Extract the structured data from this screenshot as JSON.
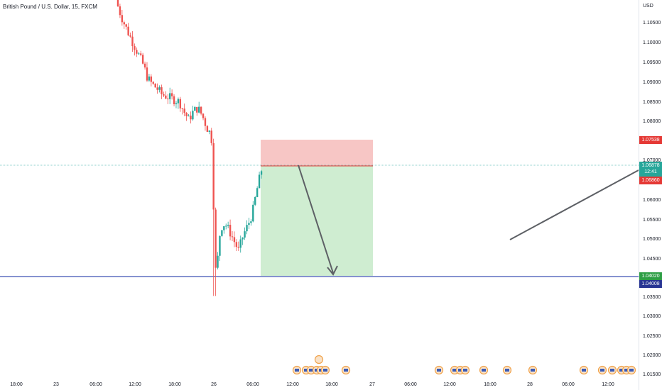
{
  "header": {
    "title": "British Pound / U.S. Dollar, 15, FXCM"
  },
  "price_axis": {
    "currency": "USD",
    "ticks": [
      "1.10500",
      "1.10000",
      "1.09500",
      "1.09000",
      "1.08500",
      "1.08000",
      "1.07000",
      "1.06000",
      "1.05500",
      "1.05000",
      "1.04500",
      "1.03500",
      "1.03000",
      "1.02500",
      "1.02000",
      "1.01500"
    ],
    "tags": {
      "stop": "1.07538",
      "current": "1.06878",
      "countdown": "12:41",
      "entry": "1.06860",
      "target": "1.04020",
      "horizontal_line": "1.04008"
    }
  },
  "time_axis": {
    "labels": [
      "18:00",
      "23",
      "06:00",
      "12:00",
      "18:00",
      "26",
      "06:00",
      "12:00",
      "18:00",
      "27",
      "06:00",
      "12:00",
      "18:00",
      "28",
      "06:00",
      "12:00"
    ]
  },
  "chart_data": {
    "type": "candlestick",
    "symbol": "GBPUSD",
    "timeframe": "15",
    "source": "FXCM",
    "ylim": [
      1.0125,
      1.112
    ],
    "close_path_approx": [
      1.112,
      1.1085,
      1.1055,
      1.103,
      1.1005,
      1.098,
      1.0955,
      1.092,
      1.0905,
      1.0895,
      1.088,
      1.0875,
      1.087,
      1.0865,
      1.086,
      1.0835,
      1.0815,
      1.0835,
      1.0845,
      1.0825,
      1.0795,
      1.0775,
      1.041,
      1.054,
      1.055,
      1.053,
      1.0505,
      1.048,
      1.052,
      1.0545,
      1.0575,
      1.0635,
      1.0686
    ],
    "short_position": {
      "entry": 1.0686,
      "stop": 1.07538,
      "target": 1.0402
    },
    "horizontal_line": 1.04008,
    "colors": {
      "up": "#26a69a",
      "down": "#ef5350",
      "stop_zone": "#f7c6c5",
      "target_zone": "#cfedd1"
    }
  }
}
